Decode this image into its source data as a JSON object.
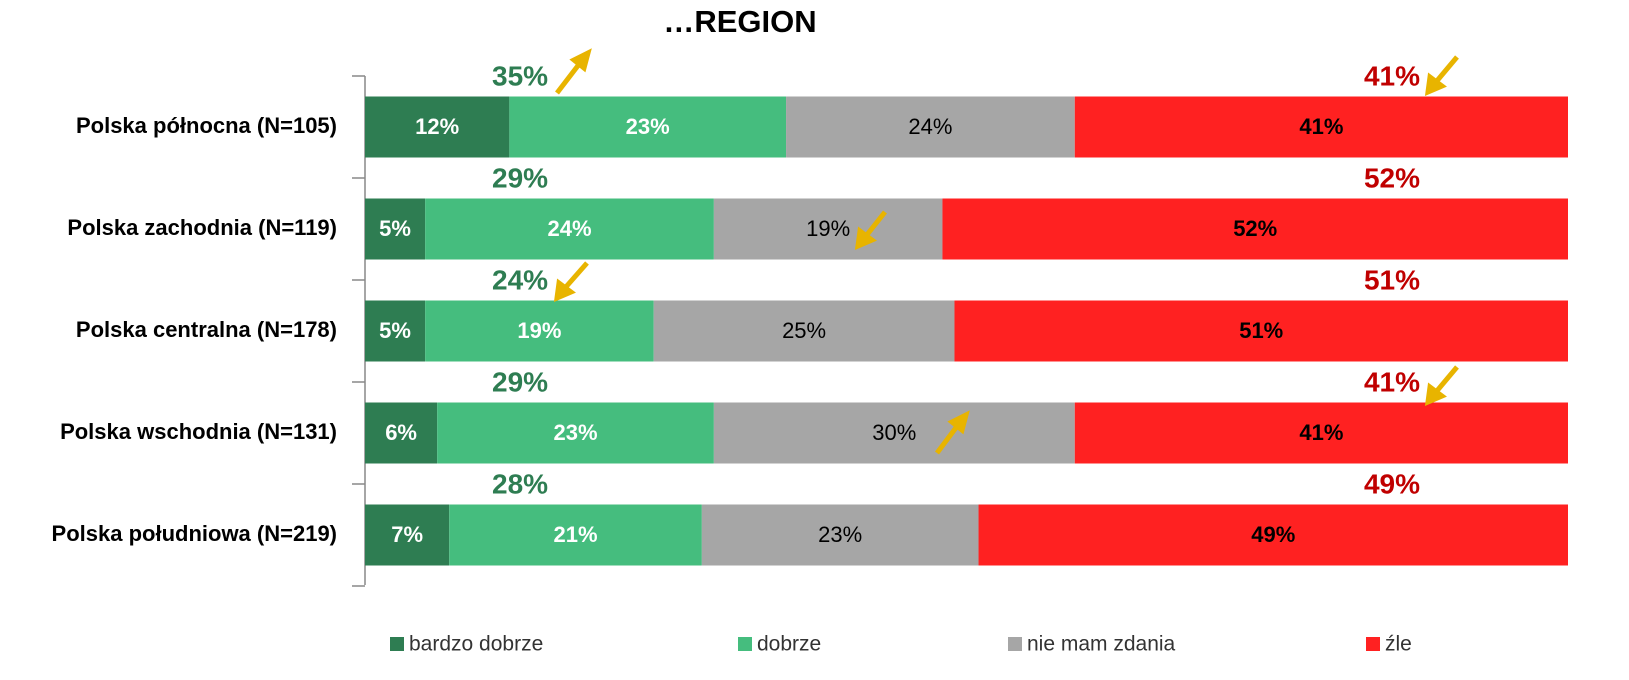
{
  "chart_data": {
    "type": "stacked_barh",
    "title": "…REGION",
    "categories": [
      "Polska północna (N=105)",
      "Polska zachodnia (N=119)",
      "Polska centralna (N=178)",
      "Polska wschodnia (N=131)",
      "Polska południowa (N=219)"
    ],
    "series": [
      {
        "name": "bardzo dobrze",
        "color": "#2e7d52",
        "label_color": "#ffffff",
        "values": [
          12,
          5,
          5,
          6,
          7
        ],
        "value_labels": [
          "12%",
          "5%",
          "5%",
          "6%",
          "7%"
        ]
      },
      {
        "name": "dobrze",
        "color": "#45bd7e",
        "label_color": "#ffffff",
        "values": [
          23,
          24,
          19,
          23,
          21
        ],
        "value_labels": [
          "23%",
          "24%",
          "19%",
          "23%",
          "21%"
        ]
      },
      {
        "name": "nie mam zdania",
        "color": "#a6a6a6",
        "label_color": "#000000",
        "values": [
          24,
          19,
          25,
          30,
          23
        ],
        "value_labels": [
          "24%",
          "19%",
          "25%",
          "30%",
          "23%"
        ]
      },
      {
        "name": "źle",
        "color": "#ff2121",
        "label_color": "#000000",
        "values": [
          41,
          52,
          51,
          41,
          49
        ],
        "value_labels": [
          "41%",
          "52%",
          "51%",
          "41%",
          "49%"
        ]
      }
    ],
    "totals": [
      {
        "color": "#2e7d52",
        "values": [
          35,
          29,
          24,
          29,
          28
        ],
        "value_labels": [
          "35%",
          "29%",
          "24%",
          "29%",
          "28%"
        ]
      },
      {
        "color": "#c00000",
        "values": [
          41,
          52,
          51,
          41,
          49
        ],
        "value_labels": [
          "41%",
          "52%",
          "51%",
          "41%",
          "49%"
        ]
      }
    ],
    "xlim": [
      0,
      100
    ]
  }
}
